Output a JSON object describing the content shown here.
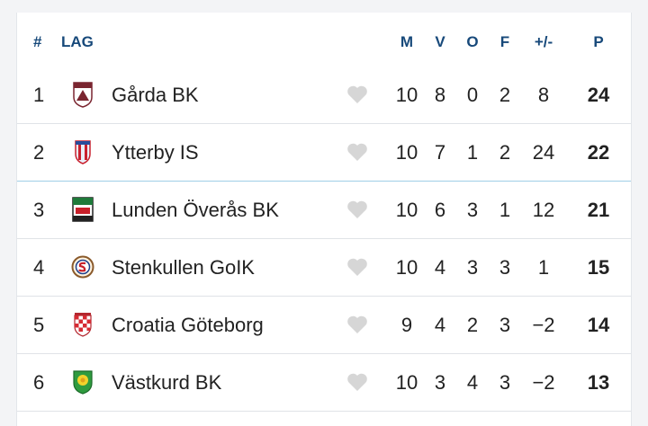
{
  "table": {
    "headers": {
      "rank": "#",
      "team": "LAG",
      "played": "M",
      "won": "V",
      "drawn": "O",
      "lost": "F",
      "goal_diff": "+/-",
      "points": "P"
    },
    "rows": [
      {
        "rank": "1",
        "team": "Gårda BK",
        "logo": "garda-bk-crest-icon",
        "played": "10",
        "won": "8",
        "drawn": "0",
        "lost": "2",
        "goal_diff": "8",
        "points": "24"
      },
      {
        "rank": "2",
        "team": "Ytterby IS",
        "logo": "ytterby-is-crest-icon",
        "played": "10",
        "won": "7",
        "drawn": "1",
        "lost": "2",
        "goal_diff": "24",
        "points": "22"
      },
      {
        "rank": "3",
        "team": "Lunden Överås BK",
        "logo": "lunden-overas-bk-crest-icon",
        "played": "10",
        "won": "6",
        "drawn": "3",
        "lost": "1",
        "goal_diff": "12",
        "points": "21"
      },
      {
        "rank": "4",
        "team": "Stenkullen GoIK",
        "logo": "stenkullen-goik-crest-icon",
        "played": "10",
        "won": "4",
        "drawn": "3",
        "lost": "3",
        "goal_diff": "1",
        "points": "15"
      },
      {
        "rank": "5",
        "team": "Croatia Göteborg",
        "logo": "croatia-goteborg-crest-icon",
        "played": "9",
        "won": "4",
        "drawn": "2",
        "lost": "3",
        "goal_diff": "−2",
        "points": "14"
      },
      {
        "rank": "6",
        "team": "Västkurd BK",
        "logo": "vastkurd-bk-crest-icon",
        "played": "10",
        "won": "3",
        "drawn": "4",
        "lost": "3",
        "goal_diff": "−2",
        "points": "13"
      }
    ]
  },
  "colors": {
    "header_text": "#17497a",
    "heart": "#d6d6d6",
    "highlight_line": "#9fcfe6"
  }
}
